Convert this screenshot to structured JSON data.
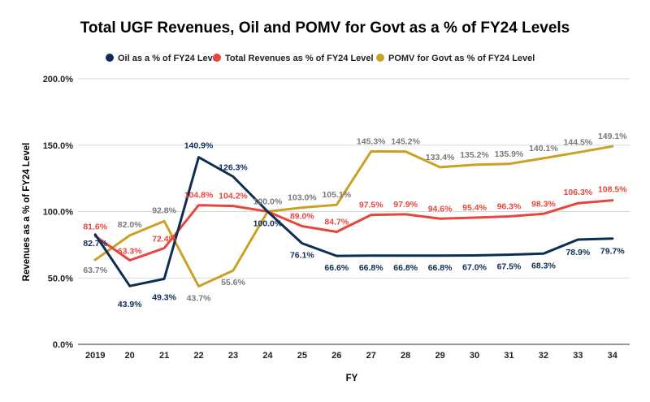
{
  "chart_data": {
    "type": "line",
    "title": "Total UGF Revenues, Oil and POMV for Govt as a % of FY24 Levels",
    "xlabel": "FY",
    "ylabel": "Revenues as a % of FY24 Level",
    "categories": [
      "2019",
      "20",
      "21",
      "22",
      "23",
      "24",
      "25",
      "26",
      "27",
      "28",
      "29",
      "30",
      "31",
      "32",
      "33",
      "34"
    ],
    "y_ticks": [
      "0.0%",
      "50.0%",
      "100.0%",
      "150.0%",
      "200.0%"
    ],
    "ylim": [
      0,
      200
    ],
    "grid": true,
    "legend_position": "top",
    "series": [
      {
        "name": "Oil as a % of FY24 Level",
        "color": "#0d2d57",
        "values": [
          82.7,
          43.9,
          49.3,
          140.9,
          126.3,
          100.0,
          76.1,
          66.6,
          66.8,
          66.8,
          66.8,
          67.0,
          67.5,
          68.3,
          78.9,
          79.7
        ],
        "labels": [
          "82.7%",
          "43.9%",
          "49.3%",
          "140.9%",
          "126.3%",
          "100.0%",
          "76.1%",
          "66.6%",
          "66.8%",
          "66.8%",
          "66.8%",
          "67.0%",
          "67.5%",
          "68.3%",
          "78.9%",
          "79.7%"
        ]
      },
      {
        "name": "Total Revenues as % of FY24 Level",
        "color": "#e8463d",
        "values": [
          81.6,
          63.3,
          72.4,
          104.8,
          104.2,
          100.0,
          89.0,
          84.7,
          97.5,
          97.9,
          94.6,
          95.4,
          96.3,
          98.3,
          106.3,
          108.5
        ],
        "labels": [
          "81.6%",
          "63.3%",
          "72.4%",
          "104.8%",
          "104.2%",
          "",
          "89.0%",
          "84.7%",
          "97.5%",
          "97.9%",
          "94.6%",
          "95.4%",
          "96.3%",
          "98.3%",
          "106.3%",
          "108.5%"
        ]
      },
      {
        "name": "POMV for Govt as % of FY24 Level",
        "color": "#c9a224",
        "values": [
          63.7,
          82.0,
          92.8,
          43.7,
          55.6,
          100.0,
          103.0,
          105.1,
          145.3,
          145.2,
          133.4,
          135.2,
          135.9,
          140.1,
          144.5,
          149.1
        ],
        "labels": [
          "63.7%",
          "82.0%",
          "92.8%",
          "43.7%",
          "55.6%",
          "100.0%",
          "103.0%",
          "105.1%",
          "145.3%",
          "145.2%",
          "133.4%",
          "135.2%",
          "135.9%",
          "140.1%",
          "144.5%",
          "149.1%"
        ]
      }
    ]
  }
}
